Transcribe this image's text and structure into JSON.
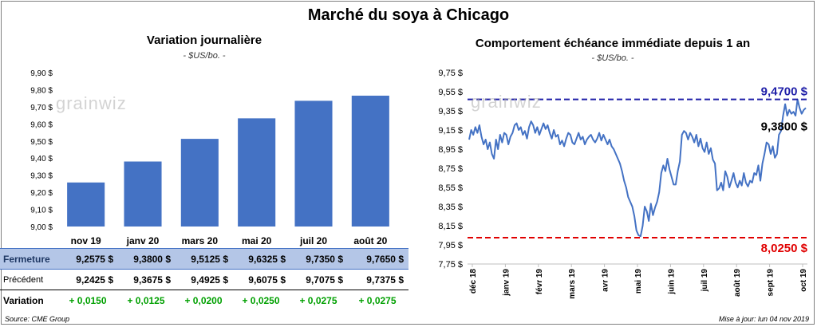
{
  "title": "Marché du soya à Chicago",
  "left": {
    "title": "Variation journalière",
    "unit": "- $US/bo. -"
  },
  "right": {
    "title": "Comportement échéance immédiate depuis 1 an",
    "unit": "- $US/bo. -"
  },
  "watermark": "grainwiz",
  "colors": {
    "bar": "#4472c4",
    "line": "#4472c4",
    "max_line": "#1f1fa8",
    "min_line": "#e00000",
    "positive": "#00a000"
  },
  "table": {
    "rows": [
      {
        "label": "Fermeture",
        "values": [
          "9,2575  $",
          "9,3800  $",
          "9,5125  $",
          "9,6325  $",
          "9,7350  $",
          "9,7650  $"
        ]
      },
      {
        "label": "Précédent",
        "values": [
          "9,2425  $",
          "9,3675  $",
          "9,4925  $",
          "9,6075  $",
          "9,7075  $",
          "9,7375  $"
        ]
      },
      {
        "label": "Variation",
        "values": [
          "+ 0,0150",
          "+ 0,0125",
          "+ 0,0200",
          "+ 0,0250",
          "+ 0,0275",
          "+ 0,0275"
        ]
      }
    ]
  },
  "footer": {
    "source": "Source: CME Group",
    "update": "Mise à jour: lun 04 nov 2019"
  },
  "chart_data": [
    {
      "type": "bar",
      "title": "Variation journalière",
      "categories": [
        "nov 19",
        "janv 20",
        "mars 20",
        "mai 20",
        "juil 20",
        "août 20"
      ],
      "values": [
        9.2575,
        9.38,
        9.5125,
        9.6325,
        9.735,
        9.765
      ],
      "ylim": [
        9.0,
        9.9
      ],
      "yticks": [
        "9,00 $",
        "9,10 $",
        "9,20 $",
        "9,30 $",
        "9,40 $",
        "9,50 $",
        "9,60 $",
        "9,70 $",
        "9,80 $",
        "9,90 $"
      ],
      "grid": false
    },
    {
      "type": "line",
      "title": "Comportement échéance immédiate depuis 1 an",
      "ylim": [
        7.75,
        9.75
      ],
      "yticks": [
        "7,75 $",
        "7,95 $",
        "8,15 $",
        "8,35 $",
        "8,55 $",
        "8,75 $",
        "8,95 $",
        "9,15 $",
        "9,35 $",
        "9,55 $",
        "9,75 $"
      ],
      "xticks": [
        "déc 18",
        "janv 19",
        "févr 19",
        "mars 19",
        "avr 19",
        "mai 19",
        "juin 19",
        "juil 19",
        "août 19",
        "sept 19",
        "oct 19"
      ],
      "series": [
        {
          "values": [
            9.05,
            9.15,
            9.1,
            9.18,
            9.12,
            9.2,
            9.08,
            9.0,
            9.05,
            8.95,
            9.02,
            8.9,
            8.85,
            9.05,
            8.95,
            9.1,
            9.02,
            9.12,
            9.1,
            9.0,
            9.08,
            9.12,
            9.2,
            9.22,
            9.15,
            9.18,
            9.1,
            9.14,
            9.06,
            9.18,
            9.24,
            9.2,
            9.12,
            9.18,
            9.1,
            9.16,
            9.22,
            9.16,
            9.2,
            9.12,
            9.06,
            9.15,
            9.08,
            9.1,
            9.0,
            9.04,
            8.98,
            9.06,
            9.12,
            9.1,
            9.02,
            9.0,
            9.06,
            9.12,
            9.05,
            9.08,
            9.0,
            9.05,
            9.08,
            9.1,
            9.05,
            9.02,
            9.06,
            9.12,
            9.04,
            9.1,
            9.05,
            9.0,
            9.05,
            8.98,
            8.95,
            8.9,
            8.85,
            8.8,
            8.72,
            8.62,
            8.55,
            8.45,
            8.4,
            8.35,
            8.25,
            8.1,
            8.05,
            8.04,
            8.15,
            8.35,
            8.3,
            8.2,
            8.38,
            8.26,
            8.34,
            8.4,
            8.5,
            8.7,
            8.78,
            8.72,
            8.85,
            8.74,
            8.66,
            8.58,
            8.58,
            8.72,
            8.82,
            9.1,
            9.14,
            9.12,
            9.05,
            9.12,
            9.08,
            9.02,
            9.1,
            8.98,
            9.06,
            8.96,
            8.92,
            9.02,
            8.9,
            8.96,
            8.84,
            8.8,
            8.52,
            8.54,
            8.6,
            8.52,
            8.72,
            8.66,
            8.55,
            8.62,
            8.7,
            8.6,
            8.55,
            8.62,
            8.57,
            8.7,
            8.6,
            8.56,
            8.62,
            8.6,
            8.7,
            8.68,
            8.78,
            8.62,
            8.8,
            8.9,
            9.02,
            9.0,
            8.9,
            8.98,
            8.86,
            8.9,
            9.1,
            9.14,
            9.3,
            9.42,
            9.3,
            9.36,
            9.32,
            9.34,
            9.3,
            9.47,
            9.38,
            9.32,
            9.36,
            9.38
          ]
        }
      ],
      "annotations": [
        {
          "label": "9,4700 $",
          "value": 9.47,
          "style": "dashed-max"
        },
        {
          "label": "8,0250 $",
          "value": 8.025,
          "style": "dashed-min"
        },
        {
          "label": "9,3800 $",
          "value": 9.38,
          "style": "last"
        }
      ],
      "grid": false
    }
  ]
}
